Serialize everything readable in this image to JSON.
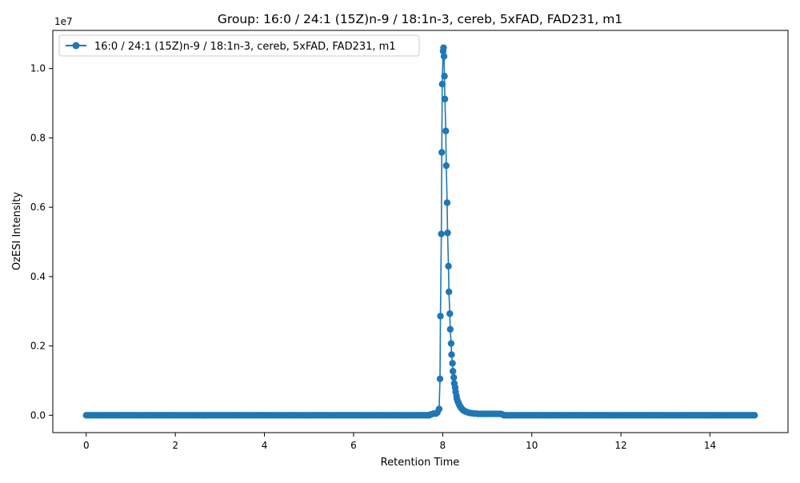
{
  "chart_data": {
    "type": "line",
    "title": "Group: 16:0 / 24:1 (15Z)n-9 / 18:1n-3, cereb, 5xFAD, FAD231, m1",
    "xlabel": "Retention Time",
    "ylabel": "OzESI Intensity",
    "y_offset_label": "1e7",
    "x_range": [
      -0.75,
      15.75
    ],
    "y_range": [
      -0.5,
      11.1
    ],
    "y_unit_multiplier": 10000000,
    "x_ticks": [
      0,
      2,
      4,
      6,
      8,
      10,
      12,
      14
    ],
    "x_tick_labels": [
      "0",
      "2",
      "4",
      "6",
      "8",
      "10",
      "12",
      "14"
    ],
    "y_ticks": [
      0.0,
      0.2,
      0.4,
      0.6,
      0.8,
      1.0
    ],
    "y_tick_labels": [
      "0.0",
      "0.2",
      "0.4",
      "0.6",
      "0.8",
      "1.0"
    ],
    "grid": false,
    "legend_position": "top-left",
    "marker": "circle",
    "series": [
      {
        "name": "16:0 / 24:1 (15Z)n-9 / 18:1n-3, cereb, 5xFAD, FAD231, m1",
        "color": "#1f77b4",
        "baseline_x_range": [
          0.0,
          15.0
        ],
        "baseline_step": 0.045,
        "baseline_y": 0.0,
        "peak_points": [
          [
            7.7,
            0.01
          ],
          [
            7.75,
            0.03
          ],
          [
            7.8,
            0.05
          ],
          [
            7.85,
            0.05
          ],
          [
            7.88,
            0.08
          ],
          [
            7.92,
            0.18
          ],
          [
            7.94,
            1.05
          ],
          [
            7.95,
            2.86
          ],
          [
            7.97,
            5.23
          ],
          [
            7.98,
            7.58
          ],
          [
            7.99,
            9.55
          ],
          [
            8.01,
            10.5
          ],
          [
            8.02,
            10.6
          ],
          [
            8.03,
            10.35
          ],
          [
            8.04,
            9.78
          ],
          [
            8.05,
            9.12
          ],
          [
            8.07,
            8.2
          ],
          [
            8.08,
            7.2
          ],
          [
            8.1,
            6.13
          ],
          [
            8.11,
            5.26
          ],
          [
            8.13,
            4.3
          ],
          [
            8.14,
            3.56
          ],
          [
            8.16,
            2.93
          ],
          [
            8.17,
            2.48
          ],
          [
            8.19,
            2.07
          ],
          [
            8.2,
            1.75
          ],
          [
            8.22,
            1.5
          ],
          [
            8.23,
            1.27
          ],
          [
            8.25,
            1.09
          ],
          [
            8.26,
            0.92
          ],
          [
            8.28,
            0.8
          ],
          [
            8.29,
            0.68
          ],
          [
            8.31,
            0.56
          ],
          [
            8.32,
            0.47
          ],
          [
            8.34,
            0.4
          ],
          [
            8.36,
            0.34
          ],
          [
            8.38,
            0.28
          ],
          [
            8.4,
            0.24
          ],
          [
            8.42,
            0.2
          ],
          [
            8.45,
            0.16
          ],
          [
            8.48,
            0.13
          ],
          [
            8.51,
            0.11
          ],
          [
            8.55,
            0.09
          ],
          [
            8.6,
            0.07
          ],
          [
            8.65,
            0.06
          ],
          [
            8.7,
            0.05
          ],
          [
            8.75,
            0.05
          ],
          [
            8.8,
            0.04
          ],
          [
            8.85,
            0.04
          ],
          [
            8.9,
            0.04
          ],
          [
            8.95,
            0.04
          ],
          [
            9.0,
            0.04
          ],
          [
            9.05,
            0.04
          ],
          [
            9.1,
            0.04
          ],
          [
            9.15,
            0.04
          ],
          [
            9.2,
            0.04
          ],
          [
            9.25,
            0.04
          ],
          [
            9.3,
            0.04
          ],
          [
            9.33,
            0.03
          ]
        ]
      }
    ]
  }
}
